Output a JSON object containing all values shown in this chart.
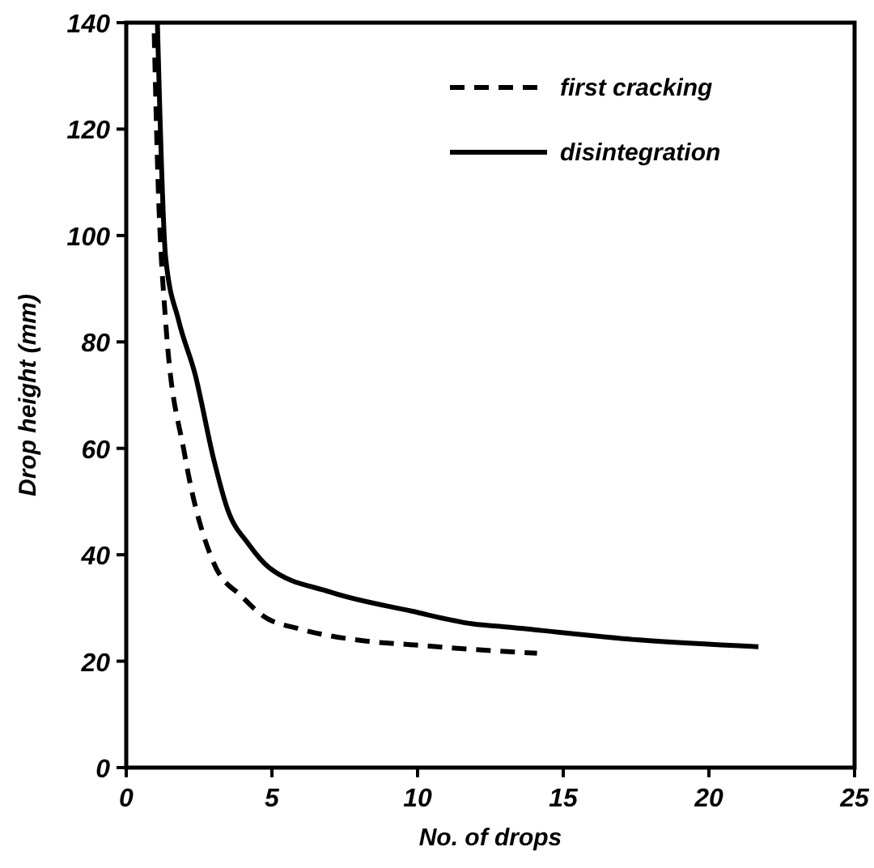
{
  "chart_data": {
    "type": "line",
    "xlabel": "No. of drops",
    "ylabel": "Drop height (mm)",
    "xlim": [
      0,
      25
    ],
    "ylim": [
      0,
      140
    ],
    "xticks": [
      0,
      5,
      10,
      15,
      20,
      25
    ],
    "yticks": [
      0,
      20,
      40,
      60,
      80,
      100,
      120,
      140
    ],
    "legend": "top right",
    "grid": false,
    "series": [
      {
        "name": "first cracking",
        "color": "#000000",
        "line_style": "dashed",
        "x": [
          0.96,
          1.07,
          1.35,
          2.0,
          3.0,
          4.0,
          4.7,
          6.0,
          7.9,
          10.0,
          13.1,
          14.1
        ],
        "values": [
          138,
          114,
          84,
          59,
          38.5,
          32,
          28.5,
          26,
          24,
          23,
          21.8,
          21.5
        ]
      },
      {
        "name": "disintegration",
        "color": "#000000",
        "line_style": "solid",
        "x": [
          1.07,
          1.35,
          1.8,
          2.36,
          3.0,
          3.48,
          4.2,
          4.9,
          7.0,
          9.8,
          11.9,
          13.1,
          17.6,
          21.7
        ],
        "values": [
          140,
          96,
          84,
          74,
          58,
          48.5,
          42,
          37.6,
          33,
          29.4,
          27,
          26.4,
          24,
          22.7
        ]
      }
    ]
  }
}
